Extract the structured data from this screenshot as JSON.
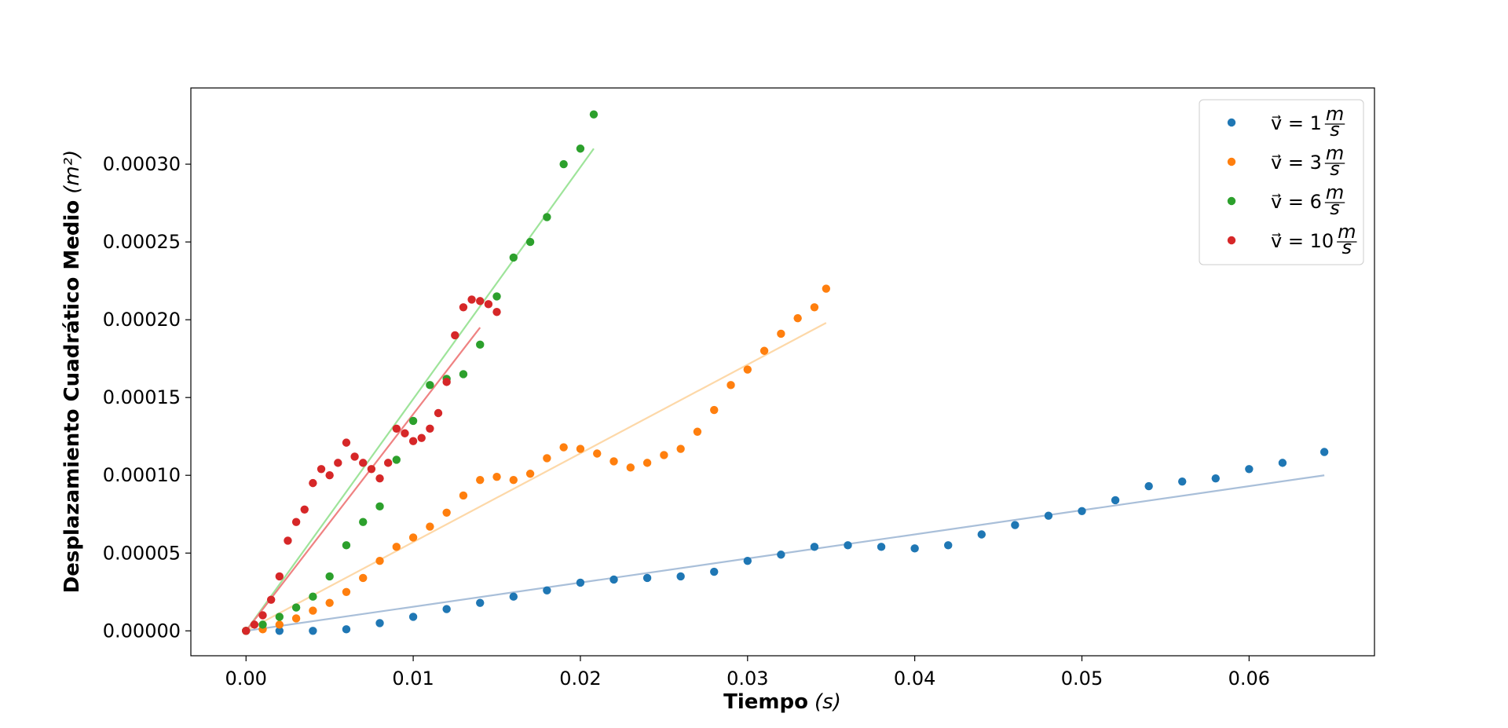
{
  "chart_data": {
    "type": "scatter",
    "xlabel": "Tiempo",
    "xlabel_unit": "(s)",
    "ylabel": "Desplazamiento Cuadrático Medio",
    "ylabel_unit": "(m²)",
    "xlim": [
      -0.0033,
      0.0675
    ],
    "ylim": [
      -1.6e-05,
      0.000349
    ],
    "x_ticks": [
      "0.00",
      "0.01",
      "0.02",
      "0.03",
      "0.04",
      "0.05",
      "0.06"
    ],
    "x_tick_values": [
      0,
      0.01,
      0.02,
      0.03,
      0.04,
      0.05,
      0.06
    ],
    "y_ticks": [
      "0.00000",
      "0.00005",
      "0.00010",
      "0.00015",
      "0.00020",
      "0.00025",
      "0.00030"
    ],
    "y_tick_values": [
      0,
      5e-05,
      0.0001,
      0.00015,
      0.0002,
      0.00025,
      0.0003
    ],
    "legend_position": "top-right",
    "grid": false,
    "series": [
      {
        "name": "v = 1 m/s",
        "legend_prefix": "v⃗ = 1",
        "color": "#1f77b4",
        "fit_color": "#a9bfd9",
        "fit": [
          [
            0,
            0
          ],
          [
            0.0645,
            0.0001
          ]
        ],
        "points": [
          [
            0,
            0
          ],
          [
            0.002,
            0
          ],
          [
            0.004,
            0
          ],
          [
            0.006,
            1e-06
          ],
          [
            0.008,
            5e-06
          ],
          [
            0.01,
            9e-06
          ],
          [
            0.012,
            1.4e-05
          ],
          [
            0.014,
            1.8e-05
          ],
          [
            0.016,
            2.2e-05
          ],
          [
            0.018,
            2.6e-05
          ],
          [
            0.02,
            3.1e-05
          ],
          [
            0.022,
            3.3e-05
          ],
          [
            0.024,
            3.4e-05
          ],
          [
            0.026,
            3.5e-05
          ],
          [
            0.028,
            3.8e-05
          ],
          [
            0.03,
            4.5e-05
          ],
          [
            0.032,
            4.9e-05
          ],
          [
            0.034,
            5.4e-05
          ],
          [
            0.036,
            5.5e-05
          ],
          [
            0.038,
            5.4e-05
          ],
          [
            0.04,
            5.3e-05
          ],
          [
            0.042,
            5.5e-05
          ],
          [
            0.044,
            6.2e-05
          ],
          [
            0.046,
            6.8e-05
          ],
          [
            0.048,
            7.4e-05
          ],
          [
            0.05,
            7.7e-05
          ],
          [
            0.052,
            8.4e-05
          ],
          [
            0.054,
            9.3e-05
          ],
          [
            0.056,
            9.6e-05
          ],
          [
            0.058,
            9.8e-05
          ],
          [
            0.06,
            0.000104
          ],
          [
            0.062,
            0.000108
          ],
          [
            0.0645,
            0.000115
          ]
        ]
      },
      {
        "name": "v = 3 m/s",
        "legend_prefix": "v⃗ = 3",
        "color": "#ff7f0e",
        "fit_color": "#fdd8a8",
        "fit": [
          [
            0,
            0
          ],
          [
            0.0347,
            0.000198
          ]
        ],
        "points": [
          [
            0,
            0
          ],
          [
            0.001,
            1e-06
          ],
          [
            0.002,
            4e-06
          ],
          [
            0.003,
            8e-06
          ],
          [
            0.004,
            1.3e-05
          ],
          [
            0.005,
            1.8e-05
          ],
          [
            0.006,
            2.5e-05
          ],
          [
            0.007,
            3.4e-05
          ],
          [
            0.008,
            4.5e-05
          ],
          [
            0.009,
            5.4e-05
          ],
          [
            0.01,
            6e-05
          ],
          [
            0.011,
            6.7e-05
          ],
          [
            0.012,
            7.6e-05
          ],
          [
            0.013,
            8.7e-05
          ],
          [
            0.014,
            9.7e-05
          ],
          [
            0.015,
            9.9e-05
          ],
          [
            0.016,
            9.7e-05
          ],
          [
            0.017,
            0.000101
          ],
          [
            0.018,
            0.000111
          ],
          [
            0.019,
            0.000118
          ],
          [
            0.02,
            0.000117
          ],
          [
            0.021,
            0.000114
          ],
          [
            0.022,
            0.000109
          ],
          [
            0.023,
            0.000105
          ],
          [
            0.024,
            0.000108
          ],
          [
            0.025,
            0.000113
          ],
          [
            0.026,
            0.000117
          ],
          [
            0.027,
            0.000128
          ],
          [
            0.028,
            0.000142
          ],
          [
            0.029,
            0.000158
          ],
          [
            0.03,
            0.000168
          ],
          [
            0.031,
            0.00018
          ],
          [
            0.032,
            0.000191
          ],
          [
            0.033,
            0.000201
          ],
          [
            0.034,
            0.000208
          ],
          [
            0.0347,
            0.00022
          ]
        ]
      },
      {
        "name": "v = 6 m/s",
        "legend_prefix": "v⃗ = 6",
        "color": "#2ca02c",
        "fit_color": "#9ee49a",
        "fit": [
          [
            0,
            0
          ],
          [
            0.0208,
            0.00031
          ]
        ],
        "points": [
          [
            0,
            0
          ],
          [
            0.001,
            4e-06
          ],
          [
            0.002,
            9e-06
          ],
          [
            0.003,
            1.5e-05
          ],
          [
            0.004,
            2.2e-05
          ],
          [
            0.005,
            3.5e-05
          ],
          [
            0.006,
            5.5e-05
          ],
          [
            0.007,
            7e-05
          ],
          [
            0.008,
            8e-05
          ],
          [
            0.009,
            0.00011
          ],
          [
            0.01,
            0.000135
          ],
          [
            0.011,
            0.000158
          ],
          [
            0.012,
            0.000162
          ],
          [
            0.013,
            0.000165
          ],
          [
            0.014,
            0.000184
          ],
          [
            0.015,
            0.000215
          ],
          [
            0.016,
            0.00024
          ],
          [
            0.017,
            0.00025
          ],
          [
            0.018,
            0.000266
          ],
          [
            0.019,
            0.0003
          ],
          [
            0.02,
            0.00031
          ],
          [
            0.0208,
            0.000332
          ]
        ]
      },
      {
        "name": "v = 10 m/s",
        "legend_prefix": "v⃗ = 10",
        "color": "#d62728",
        "fit_color": "#ef8282",
        "fit": [
          [
            0,
            0
          ],
          [
            0.014,
            0.000195
          ]
        ],
        "points": [
          [
            0,
            0
          ],
          [
            0.0005,
            4e-06
          ],
          [
            0.001,
            1e-05
          ],
          [
            0.0015,
            2e-05
          ],
          [
            0.002,
            3.5e-05
          ],
          [
            0.0025,
            5.8e-05
          ],
          [
            0.003,
            7e-05
          ],
          [
            0.0035,
            7.8e-05
          ],
          [
            0.004,
            9.5e-05
          ],
          [
            0.0045,
            0.000104
          ],
          [
            0.005,
            0.0001
          ],
          [
            0.0055,
            0.000108
          ],
          [
            0.006,
            0.000121
          ],
          [
            0.0065,
            0.000112
          ],
          [
            0.007,
            0.000108
          ],
          [
            0.0075,
            0.000104
          ],
          [
            0.008,
            9.8e-05
          ],
          [
            0.0085,
            0.000108
          ],
          [
            0.009,
            0.00013
          ],
          [
            0.0095,
            0.000127
          ],
          [
            0.01,
            0.000122
          ],
          [
            0.0105,
            0.000124
          ],
          [
            0.011,
            0.00013
          ],
          [
            0.0115,
            0.00014
          ],
          [
            0.012,
            0.00016
          ],
          [
            0.0125,
            0.00019
          ],
          [
            0.013,
            0.000208
          ],
          [
            0.0135,
            0.000213
          ],
          [
            0.014,
            0.000212
          ],
          [
            0.0145,
            0.00021
          ],
          [
            0.015,
            0.000205
          ]
        ]
      }
    ]
  }
}
